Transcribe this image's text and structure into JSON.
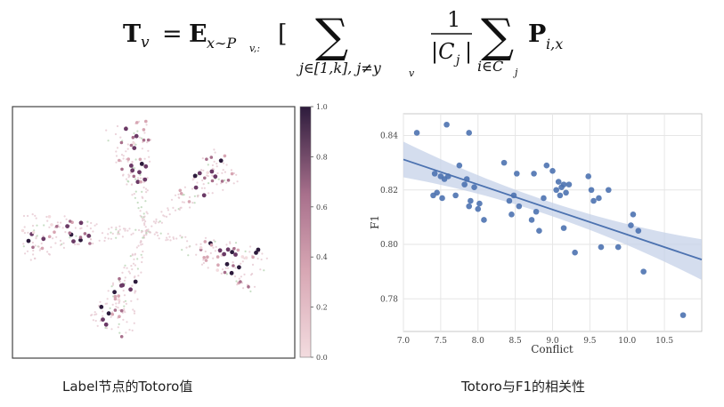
{
  "formula": {
    "lhs": "T",
    "lhs_sub": "v",
    "eq": "=",
    "expect": "E",
    "expect_sub": "x∼P",
    "expect_sub2": "v,:",
    "bracket": "[",
    "sum_sym": "∑",
    "sum1_sub": "j∈[1,k], j≠y",
    "sum1_sub_v": "v",
    "frac_num": "1",
    "frac_den": "|C",
    "frac_den_sub": "j",
    "frac_den_end": "|",
    "sum2_sub": "i∈C",
    "sum2_sub_j": "j",
    "term": "P",
    "term_sub": "i,x"
  },
  "captions": {
    "left": "Label节点的Totoro值",
    "right": "Totoro与F1的相关性"
  },
  "colors": {
    "scatter_point": "#4c72b0",
    "regression_line": "#4c72b0",
    "confidence_band": "#c5d1e8",
    "grid": "#e6e6e6",
    "colormap_low": "#f3dcdf",
    "colormap_mid": "#a8708c",
    "colormap_high": "#2d1b3c"
  },
  "chart_data": [
    {
      "type": "scatter",
      "title": "",
      "xlabel": "",
      "ylabel": "",
      "colorbar": {
        "range": [
          0.0,
          1.0
        ],
        "ticks": [
          "0.0",
          "0.2",
          "0.4",
          "0.6",
          "0.8",
          "1.0"
        ]
      },
      "axes_ticks": false,
      "grid": false
    },
    {
      "type": "scatter",
      "title": "",
      "xlabel": "Conflict",
      "ylabel": "F1",
      "xlim": [
        7.0,
        11.0
      ],
      "ylim": [
        0.768,
        0.848
      ],
      "xticks": [
        "7.0",
        "7.5",
        "8.0",
        "8.5",
        "9.0",
        "9.5",
        "10.0",
        "10.5"
      ],
      "yticks": [
        "0.78",
        "0.80",
        "0.82",
        "0.84"
      ],
      "grid": true,
      "regression": {
        "slope": -0.0092,
        "intercept": 0.8956
      },
      "points": [
        {
          "x": 7.18,
          "y": 0.841
        },
        {
          "x": 7.58,
          "y": 0.844
        },
        {
          "x": 7.88,
          "y": 0.841
        },
        {
          "x": 7.42,
          "y": 0.826
        },
        {
          "x": 7.5,
          "y": 0.825
        },
        {
          "x": 7.55,
          "y": 0.824
        },
        {
          "x": 7.6,
          "y": 0.825
        },
        {
          "x": 7.45,
          "y": 0.819
        },
        {
          "x": 7.4,
          "y": 0.818
        },
        {
          "x": 7.52,
          "y": 0.817
        },
        {
          "x": 7.75,
          "y": 0.829
        },
        {
          "x": 7.7,
          "y": 0.818
        },
        {
          "x": 7.82,
          "y": 0.822
        },
        {
          "x": 7.85,
          "y": 0.824
        },
        {
          "x": 7.9,
          "y": 0.816
        },
        {
          "x": 7.88,
          "y": 0.814
        },
        {
          "x": 7.95,
          "y": 0.821
        },
        {
          "x": 8.0,
          "y": 0.813
        },
        {
          "x": 8.02,
          "y": 0.815
        },
        {
          "x": 8.08,
          "y": 0.809
        },
        {
          "x": 8.35,
          "y": 0.83
        },
        {
          "x": 8.42,
          "y": 0.816
        },
        {
          "x": 8.48,
          "y": 0.818
        },
        {
          "x": 8.52,
          "y": 0.826
        },
        {
          "x": 8.45,
          "y": 0.811
        },
        {
          "x": 8.55,
          "y": 0.814
        },
        {
          "x": 8.72,
          "y": 0.809
        },
        {
          "x": 8.78,
          "y": 0.812
        },
        {
          "x": 8.82,
          "y": 0.805
        },
        {
          "x": 8.88,
          "y": 0.817
        },
        {
          "x": 8.75,
          "y": 0.826
        },
        {
          "x": 8.92,
          "y": 0.829
        },
        {
          "x": 9.05,
          "y": 0.82
        },
        {
          "x": 9.08,
          "y": 0.823
        },
        {
          "x": 9.12,
          "y": 0.821
        },
        {
          "x": 9.15,
          "y": 0.822
        },
        {
          "x": 9.18,
          "y": 0.819
        },
        {
          "x": 9.1,
          "y": 0.818
        },
        {
          "x": 9.0,
          "y": 0.827
        },
        {
          "x": 9.22,
          "y": 0.822
        },
        {
          "x": 9.15,
          "y": 0.806
        },
        {
          "x": 9.3,
          "y": 0.797
        },
        {
          "x": 9.48,
          "y": 0.825
        },
        {
          "x": 9.52,
          "y": 0.82
        },
        {
          "x": 9.55,
          "y": 0.816
        },
        {
          "x": 9.62,
          "y": 0.817
        },
        {
          "x": 9.65,
          "y": 0.799
        },
        {
          "x": 9.75,
          "y": 0.82
        },
        {
          "x": 9.88,
          "y": 0.799
        },
        {
          "x": 10.05,
          "y": 0.807
        },
        {
          "x": 10.08,
          "y": 0.811
        },
        {
          "x": 10.15,
          "y": 0.805
        },
        {
          "x": 10.22,
          "y": 0.79
        },
        {
          "x": 10.75,
          "y": 0.774
        }
      ]
    }
  ]
}
